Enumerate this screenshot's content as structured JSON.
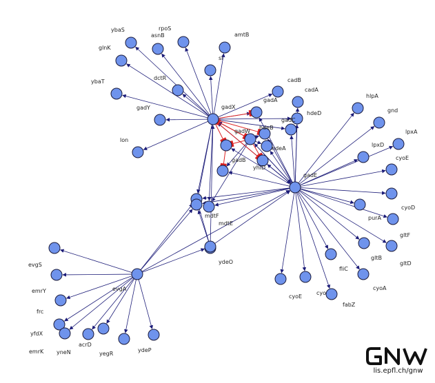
{
  "colors": {
    "node_fill": "#6f93ec",
    "edge": "#1c1c78",
    "repression_edge": "#dd2222"
  },
  "nodes": [
    {
      "id": "ybaS",
      "label": "ybaS"
    },
    {
      "id": "asnB",
      "label": "asnB"
    },
    {
      "id": "rpoS",
      "label": "rpoS"
    },
    {
      "id": "amtB",
      "label": "amtB"
    },
    {
      "id": "glnK",
      "label": "glnK"
    },
    {
      "id": "sl",
      "label": "sl"
    },
    {
      "id": "dctR",
      "label": "dctR"
    },
    {
      "id": "cadB",
      "label": "cadB"
    },
    {
      "id": "ybaT",
      "label": "ybaT"
    },
    {
      "id": "cadA",
      "label": "cadA"
    },
    {
      "id": "hlpA",
      "label": "hlpA"
    },
    {
      "id": "gadX",
      "label": "gadX"
    },
    {
      "id": "gadA",
      "label": "gadA"
    },
    {
      "id": "gadY",
      "label": "gadY"
    },
    {
      "id": "hdeD",
      "label": "hdeD"
    },
    {
      "id": "gnd",
      "label": "gnd"
    },
    {
      "id": "gadC",
      "label": "gadC"
    },
    {
      "id": "lpxA",
      "label": "lpxA"
    },
    {
      "id": "gadW",
      "label": "gadW"
    },
    {
      "id": "hdeB",
      "label": "hdeB"
    },
    {
      "id": "lon",
      "label": "lon"
    },
    {
      "id": "lpxD",
      "label": "lpxD"
    },
    {
      "id": "hdeA",
      "label": "hdeA"
    },
    {
      "id": "cyoE",
      "label": "cyoE"
    },
    {
      "id": "gadB",
      "label": "gadB"
    },
    {
      "id": "yhiD",
      "label": "yhiD"
    },
    {
      "id": "gadE",
      "label": "gadE"
    },
    {
      "id": "mdtF",
      "label": "mdtF"
    },
    {
      "id": "cyoD",
      "label": "cyoD"
    },
    {
      "id": "purA",
      "label": "purA"
    },
    {
      "id": "mdtE",
      "label": "mdtE"
    },
    {
      "id": "gltF",
      "label": "gltF"
    },
    {
      "id": "ydeO",
      "label": "ydeO"
    },
    {
      "id": "gltB",
      "label": "gltB"
    },
    {
      "id": "gltD",
      "label": "gltD"
    },
    {
      "id": "evgS",
      "label": "evgS"
    },
    {
      "id": "fliC",
      "label": "fliC"
    },
    {
      "id": "emrY",
      "label": "emrY"
    },
    {
      "id": "evgA",
      "label": "evgA"
    },
    {
      "id": "cyoA",
      "label": "cyoA"
    },
    {
      "id": "cyoB",
      "label": "cyoE"
    },
    {
      "id": "cyoC",
      "label": "cyo"
    },
    {
      "id": "fabZ",
      "label": "fabZ"
    },
    {
      "id": "frc",
      "label": "frc"
    },
    {
      "id": "yfdX",
      "label": "yfdX"
    },
    {
      "id": "acrD",
      "label": "acrD"
    },
    {
      "id": "emrK",
      "label": "emrK"
    },
    {
      "id": "yneN",
      "label": "yneN"
    },
    {
      "id": "yegR",
      "label": "yegR"
    },
    {
      "id": "ydeP",
      "label": "ydeP"
    },
    {
      "id": "mdtE2",
      "label": ""
    },
    {
      "id": "mdtF2",
      "label": ""
    },
    {
      "id": "gadB2",
      "label": ""
    }
  ],
  "logo": {
    "text": "GNW",
    "url": "lis.epfl.ch/gnw"
  }
}
